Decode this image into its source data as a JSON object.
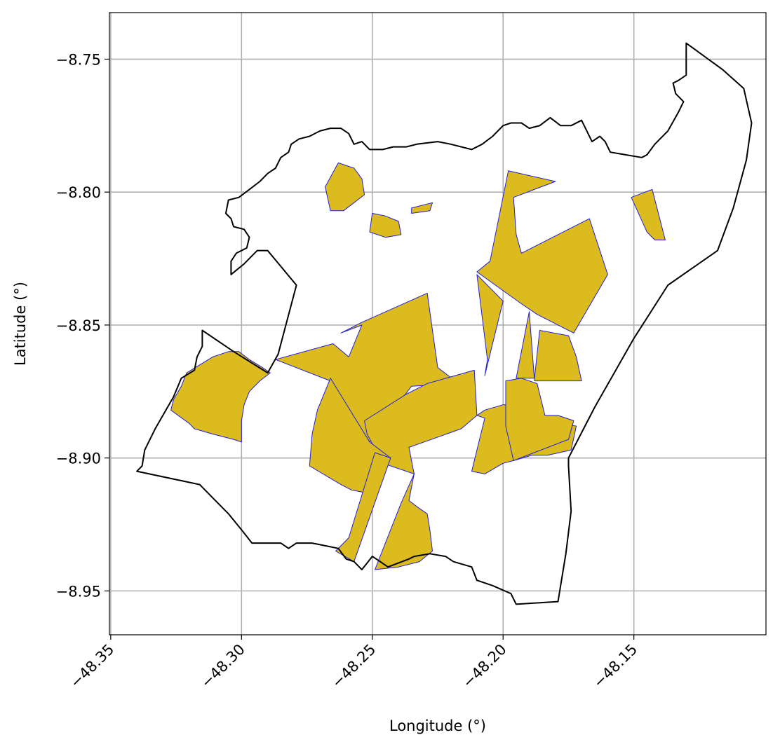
{
  "chart_data": {
    "type": "map",
    "xlabel": "Longitude (°)",
    "ylabel": "Latitude (°)",
    "xlim": [
      -48.3505,
      -48.0995
    ],
    "ylim": [
      -8.9665,
      -8.7325
    ],
    "xticks": [
      -48.35,
      -48.3,
      -48.25,
      -48.2,
      -48.15
    ],
    "xtick_labels": [
      "−48.35",
      "−48.30",
      "−48.25",
      "−48.20",
      "−48.15"
    ],
    "yticks": [
      -8.75,
      -8.8,
      -8.85,
      -8.9,
      -8.95
    ],
    "ytick_labels": [
      "−8.75",
      "−8.80",
      "−8.85",
      "−8.90",
      "−8.95"
    ],
    "grid": true,
    "colors": {
      "grid": "#b0b0b0",
      "boundary": "#000000",
      "parcel_fill": "#dcbb1f",
      "parcel_edge": "#1f1fd8"
    },
    "boundary": [
      [
        -48.13,
        -8.744
      ],
      [
        -48.116,
        -8.754
      ],
      [
        -48.108,
        -8.761
      ],
      [
        -48.105,
        -8.774
      ],
      [
        -48.107,
        -8.788
      ],
      [
        -48.112,
        -8.806
      ],
      [
        -48.118,
        -8.822
      ],
      [
        -48.137,
        -8.835
      ],
      [
        -48.15,
        -8.855
      ],
      [
        -48.165,
        -8.881
      ],
      [
        -48.175,
        -8.9
      ],
      [
        -48.175,
        -8.903
      ],
      [
        -48.174,
        -8.92
      ],
      [
        -48.176,
        -8.936
      ],
      [
        -48.179,
        -8.954
      ],
      [
        -48.195,
        -8.955
      ],
      [
        -48.197,
        -8.951
      ],
      [
        -48.204,
        -8.948
      ],
      [
        -48.21,
        -8.946
      ],
      [
        -48.212,
        -8.941
      ],
      [
        -48.219,
        -8.939
      ],
      [
        -48.222,
        -8.937
      ],
      [
        -48.228,
        -8.936
      ],
      [
        -48.234,
        -8.937
      ],
      [
        -48.236,
        -8.938
      ],
      [
        -48.244,
        -8.941
      ],
      [
        -48.247,
        -8.939
      ],
      [
        -48.25,
        -8.937
      ],
      [
        -48.254,
        -8.942
      ],
      [
        -48.257,
        -8.939
      ],
      [
        -48.26,
        -8.938
      ],
      [
        -48.263,
        -8.934
      ],
      [
        -48.268,
        -8.933
      ],
      [
        -48.273,
        -8.932
      ],
      [
        -48.279,
        -8.932
      ],
      [
        -48.282,
        -8.934
      ],
      [
        -48.285,
        -8.932
      ],
      [
        -48.29,
        -8.932
      ],
      [
        -48.296,
        -8.932
      ],
      [
        -48.3,
        -8.927
      ],
      [
        -48.305,
        -8.921
      ],
      [
        -48.312,
        -8.914
      ],
      [
        -48.316,
        -8.91
      ],
      [
        -48.34,
        -8.905
      ],
      [
        -48.338,
        -8.903
      ],
      [
        -48.337,
        -8.897
      ],
      [
        -48.333,
        -8.889
      ],
      [
        -48.326,
        -8.877
      ],
      [
        -48.323,
        -8.87
      ],
      [
        -48.318,
        -8.867
      ],
      [
        -48.317,
        -8.862
      ],
      [
        -48.315,
        -8.858
      ],
      [
        -48.315,
        -8.852
      ],
      [
        -48.303,
        -8.86
      ],
      [
        -48.29,
        -8.868
      ],
      [
        -48.286,
        -8.861
      ],
      [
        -48.279,
        -8.835
      ],
      [
        -48.29,
        -8.822
      ],
      [
        -48.294,
        -8.822
      ],
      [
        -48.299,
        -8.827
      ],
      [
        -48.304,
        -8.831
      ],
      [
        -48.304,
        -8.826
      ],
      [
        -48.302,
        -8.823
      ],
      [
        -48.298,
        -8.821
      ],
      [
        -48.297,
        -8.817
      ],
      [
        -48.299,
        -8.814
      ],
      [
        -48.303,
        -8.813
      ],
      [
        -48.304,
        -8.81
      ],
      [
        -48.306,
        -8.808
      ],
      [
        -48.305,
        -8.803
      ],
      [
        -48.301,
        -8.802
      ],
      [
        -48.297,
        -8.799
      ],
      [
        -48.293,
        -8.796
      ],
      [
        -48.29,
        -8.793
      ],
      [
        -48.287,
        -8.791
      ],
      [
        -48.285,
        -8.787
      ],
      [
        -48.282,
        -8.785
      ],
      [
        -48.281,
        -8.782
      ],
      [
        -48.278,
        -8.78
      ],
      [
        -48.274,
        -8.779
      ],
      [
        -48.27,
        -8.777
      ],
      [
        -48.266,
        -8.776
      ],
      [
        -48.262,
        -8.776
      ],
      [
        -48.259,
        -8.778
      ],
      [
        -48.257,
        -8.782
      ],
      [
        -48.254,
        -8.781
      ],
      [
        -48.251,
        -8.784
      ],
      [
        -48.246,
        -8.784
      ],
      [
        -48.242,
        -8.783
      ],
      [
        -48.237,
        -8.783
      ],
      [
        -48.233,
        -8.782
      ],
      [
        -48.225,
        -8.781
      ],
      [
        -48.22,
        -8.782
      ],
      [
        -48.212,
        -8.784
      ],
      [
        -48.208,
        -8.782
      ],
      [
        -48.204,
        -8.779
      ],
      [
        -48.2,
        -8.775
      ],
      [
        -48.197,
        -8.774
      ],
      [
        -48.193,
        -8.774
      ],
      [
        -48.19,
        -8.776
      ],
      [
        -48.186,
        -8.775
      ],
      [
        -48.182,
        -8.772
      ],
      [
        -48.178,
        -8.775
      ],
      [
        -48.174,
        -8.775
      ],
      [
        -48.17,
        -8.773
      ],
      [
        -48.168,
        -8.777
      ],
      [
        -48.166,
        -8.781
      ],
      [
        -48.163,
        -8.779
      ],
      [
        -48.161,
        -8.781
      ],
      [
        -48.159,
        -8.785
      ],
      [
        -48.153,
        -8.786
      ],
      [
        -48.147,
        -8.787
      ],
      [
        -48.145,
        -8.786
      ],
      [
        -48.142,
        -8.782
      ],
      [
        -48.137,
        -8.777
      ],
      [
        -48.133,
        -8.77
      ],
      [
        -48.131,
        -8.766
      ],
      [
        -48.134,
        -8.763
      ],
      [
        -48.135,
        -8.759
      ],
      [
        -48.133,
        -8.758
      ],
      [
        -48.13,
        -8.756
      ],
      [
        -48.13,
        -8.749
      ],
      [
        -48.13,
        -8.744
      ]
    ],
    "parcels": [
      [
        [
          -48.327,
          -8.882
        ],
        [
          -48.326,
          -8.878
        ],
        [
          -48.323,
          -8.873
        ],
        [
          -48.321,
          -8.868
        ],
        [
          -48.316,
          -8.865
        ],
        [
          -48.311,
          -8.862
        ],
        [
          -48.305,
          -8.86
        ],
        [
          -48.301,
          -8.86
        ],
        [
          -48.297,
          -8.863
        ],
        [
          -48.292,
          -8.866
        ],
        [
          -48.289,
          -8.868
        ],
        [
          -48.293,
          -8.871
        ],
        [
          -48.297,
          -8.875
        ],
        [
          -48.299,
          -8.88
        ],
        [
          -48.3,
          -8.886
        ],
        [
          -48.3,
          -8.894
        ],
        [
          -48.303,
          -8.893
        ],
        [
          -48.311,
          -8.891
        ],
        [
          -48.318,
          -8.889
        ],
        [
          -48.32,
          -8.887
        ]
      ],
      [
        [
          -48.287,
          -8.863
        ],
        [
          -48.265,
          -8.857
        ],
        [
          -48.259,
          -8.862
        ],
        [
          -48.254,
          -8.85
        ],
        [
          -48.262,
          -8.853
        ],
        [
          -48.254,
          -8.849
        ],
        [
          -48.229,
          -8.838
        ],
        [
          -48.225,
          -8.866
        ],
        [
          -48.217,
          -8.872
        ],
        [
          -48.235,
          -8.873
        ],
        [
          -48.251,
          -8.894
        ],
        [
          -48.266,
          -8.871
        ]
      ],
      [
        [
          -48.253,
          -8.886
        ],
        [
          -48.237,
          -8.876
        ],
        [
          -48.229,
          -8.872
        ],
        [
          -48.211,
          -8.867
        ],
        [
          -48.21,
          -8.884
        ],
        [
          -48.216,
          -8.889
        ],
        [
          -48.236,
          -8.896
        ],
        [
          -48.234,
          -8.906
        ],
        [
          -48.246,
          -8.902
        ],
        [
          -48.252,
          -8.891
        ]
      ],
      [
        [
          -48.266,
          -8.87
        ],
        [
          -48.271,
          -8.882
        ],
        [
          -48.273,
          -8.891
        ],
        [
          -48.274,
          -8.903
        ],
        [
          -48.262,
          -8.91
        ],
        [
          -48.258,
          -8.912
        ],
        [
          -48.253,
          -8.913
        ],
        [
          -48.249,
          -8.905
        ],
        [
          -48.243,
          -8.9
        ],
        [
          -48.251,
          -8.894
        ]
      ],
      [
        [
          -48.249,
          -8.898
        ],
        [
          -48.243,
          -8.9
        ],
        [
          -48.257,
          -8.939
        ],
        [
          -48.264,
          -8.935
        ],
        [
          -48.259,
          -8.93
        ]
      ],
      [
        [
          -48.234,
          -8.906
        ],
        [
          -48.239,
          -8.917
        ],
        [
          -48.249,
          -8.942
        ],
        [
          -48.24,
          -8.941
        ],
        [
          -48.232,
          -8.939
        ],
        [
          -48.227,
          -8.935
        ],
        [
          -48.228,
          -8.927
        ],
        [
          -48.229,
          -8.921
        ],
        [
          -48.232,
          -8.919
        ],
        [
          -48.236,
          -8.916
        ]
      ],
      [
        [
          -48.21,
          -8.884
        ],
        [
          -48.207,
          -8.882
        ],
        [
          -48.2,
          -8.88
        ],
        [
          -48.194,
          -8.88
        ],
        [
          -48.191,
          -8.885
        ],
        [
          -48.172,
          -8.888
        ],
        [
          -48.174,
          -8.897
        ],
        [
          -48.183,
          -8.899
        ],
        [
          -48.189,
          -8.899
        ],
        [
          -48.196,
          -8.901
        ],
        [
          -48.2,
          -8.902
        ],
        [
          -48.207,
          -8.906
        ],
        [
          -48.212,
          -8.905
        ],
        [
          -48.207,
          -8.885
        ]
      ],
      [
        [
          -48.21,
          -8.83
        ],
        [
          -48.205,
          -8.826
        ],
        [
          -48.198,
          -8.792
        ],
        [
          -48.18,
          -8.796
        ],
        [
          -48.196,
          -8.802
        ],
        [
          -48.195,
          -8.816
        ],
        [
          -48.193,
          -8.823
        ],
        [
          -48.167,
          -8.81
        ],
        [
          -48.16,
          -8.831
        ],
        [
          -48.173,
          -8.853
        ],
        [
          -48.187,
          -8.846
        ],
        [
          -48.193,
          -8.842
        ]
      ],
      [
        [
          -48.21,
          -8.831
        ],
        [
          -48.206,
          -8.863
        ],
        [
          -48.207,
          -8.869
        ],
        [
          -48.2,
          -8.841
        ]
      ],
      [
        [
          -48.19,
          -8.845
        ],
        [
          -48.195,
          -8.87
        ],
        [
          -48.188,
          -8.87
        ],
        [
          -48.186,
          -8.852
        ],
        [
          -48.175,
          -8.854
        ],
        [
          -48.172,
          -8.862
        ],
        [
          -48.17,
          -8.871
        ],
        [
          -48.178,
          -8.871
        ],
        [
          -48.188,
          -8.871
        ]
      ],
      [
        [
          -48.199,
          -8.871
        ],
        [
          -48.193,
          -8.87
        ],
        [
          -48.187,
          -8.872
        ],
        [
          -48.184,
          -8.884
        ],
        [
          -48.179,
          -8.884
        ],
        [
          -48.173,
          -8.886
        ],
        [
          -48.175,
          -8.893
        ],
        [
          -48.196,
          -8.901
        ],
        [
          -48.199,
          -8.888
        ]
      ],
      [
        [
          -48.263,
          -8.789
        ],
        [
          -48.257,
          -8.791
        ],
        [
          -48.254,
          -8.795
        ],
        [
          -48.253,
          -8.801
        ],
        [
          -48.257,
          -8.804
        ],
        [
          -48.261,
          -8.807
        ],
        [
          -48.266,
          -8.807
        ],
        [
          -48.268,
          -8.798
        ]
      ],
      [
        [
          -48.25,
          -8.808
        ],
        [
          -48.245,
          -8.809
        ],
        [
          -48.24,
          -8.811
        ],
        [
          -48.239,
          -8.816
        ],
        [
          -48.245,
          -8.817
        ],
        [
          -48.251,
          -8.815
        ]
      ],
      [
        [
          -48.227,
          -8.804
        ],
        [
          -48.235,
          -8.806
        ],
        [
          -48.235,
          -8.808
        ],
        [
          -48.228,
          -8.807
        ]
      ],
      [
        [
          -48.151,
          -8.802
        ],
        [
          -48.143,
          -8.799
        ],
        [
          -48.138,
          -8.818
        ],
        [
          -48.142,
          -8.818
        ],
        [
          -48.145,
          -8.815
        ]
      ]
    ]
  }
}
